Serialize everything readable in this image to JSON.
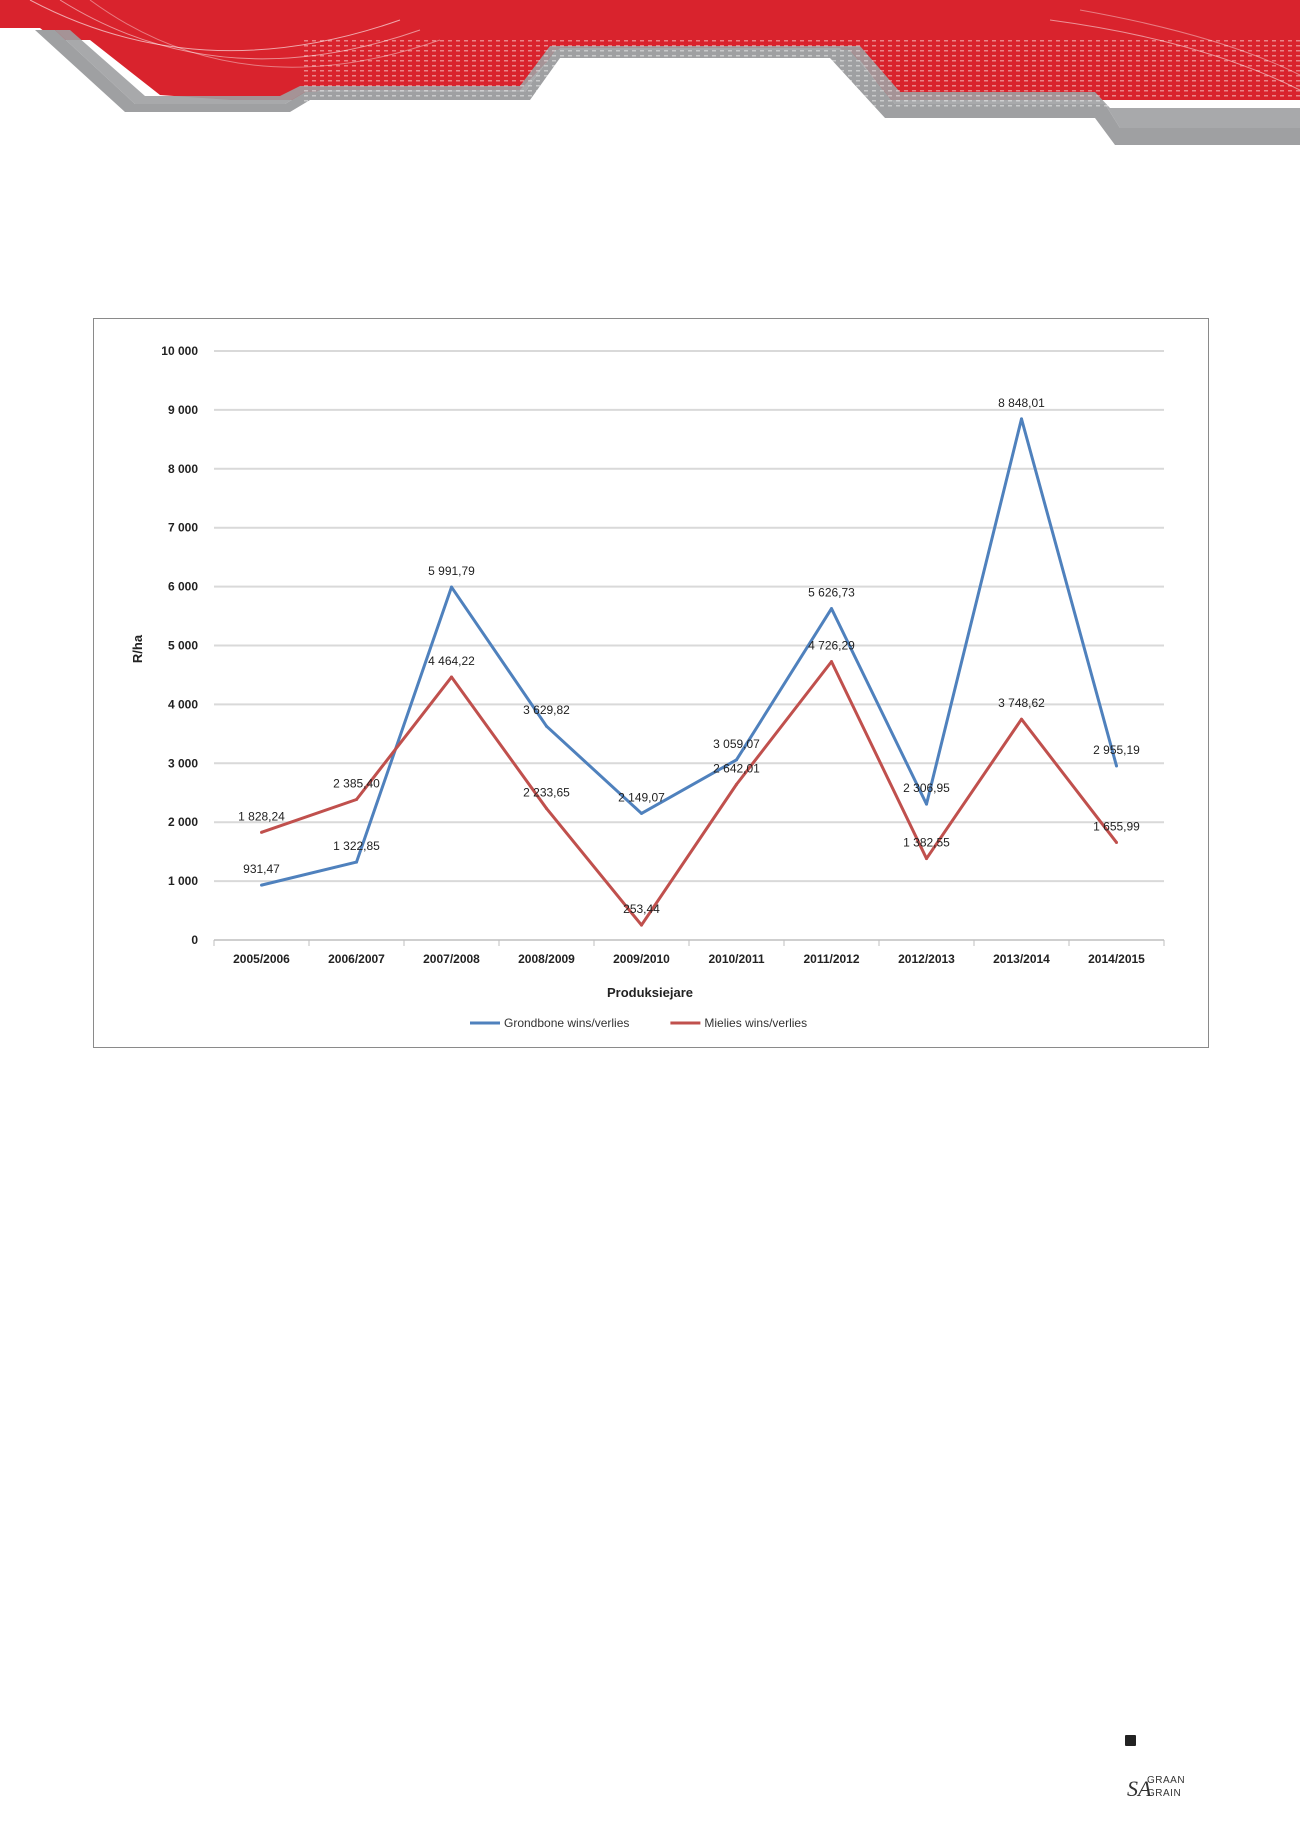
{
  "chart_data": {
    "type": "line",
    "title": "",
    "xlabel": "Produksiejare",
    "ylabel": "R/ha",
    "ylim": [
      0,
      10000
    ],
    "yticks": [
      "0",
      "1 000",
      "2 000",
      "3 000",
      "4 000",
      "5 000",
      "6 000",
      "7 000",
      "8 000",
      "9 000",
      "10 000"
    ],
    "categories": [
      "2005/2006",
      "2006/2007",
      "2007/2008",
      "2008/2009",
      "2009/2010",
      "2010/2011",
      "2011/2012",
      "2012/2013",
      "2013/2014",
      "2014/2015"
    ],
    "grid": true,
    "legend_position": "bottom",
    "series": [
      {
        "name": "Grondbone wins/verlies",
        "color": "#4f81bd",
        "values": [
          931.47,
          1322.85,
          5991.79,
          3629.82,
          2149.07,
          3059.07,
          5626.73,
          2306.95,
          8848.01,
          2955.19
        ],
        "labels": [
          "931,47",
          "1 322,85",
          "5 991,79",
          "3 629,82",
          "2 149,07",
          "3 059,07",
          "5 626,73",
          "2 306,95",
          "8 848,01",
          "2 955,19"
        ]
      },
      {
        "name": "Mielies wins/verlies",
        "color": "#c0504d",
        "values": [
          1828.24,
          2385.4,
          4464.22,
          2233.65,
          253.44,
          2642.01,
          4726.29,
          1382.55,
          3748.62,
          1655.99
        ],
        "labels": [
          "1 828,24",
          "2 385,40",
          "4 464,22",
          "2 233,65",
          "253,44",
          "2 642,01",
          "4 726,29",
          "1 382,55",
          "3 748,62",
          "1 655,99"
        ]
      }
    ]
  },
  "footer": {
    "logo_sa": "SA",
    "logo_line1": "GRAAN",
    "logo_line2": "GRAIN"
  }
}
